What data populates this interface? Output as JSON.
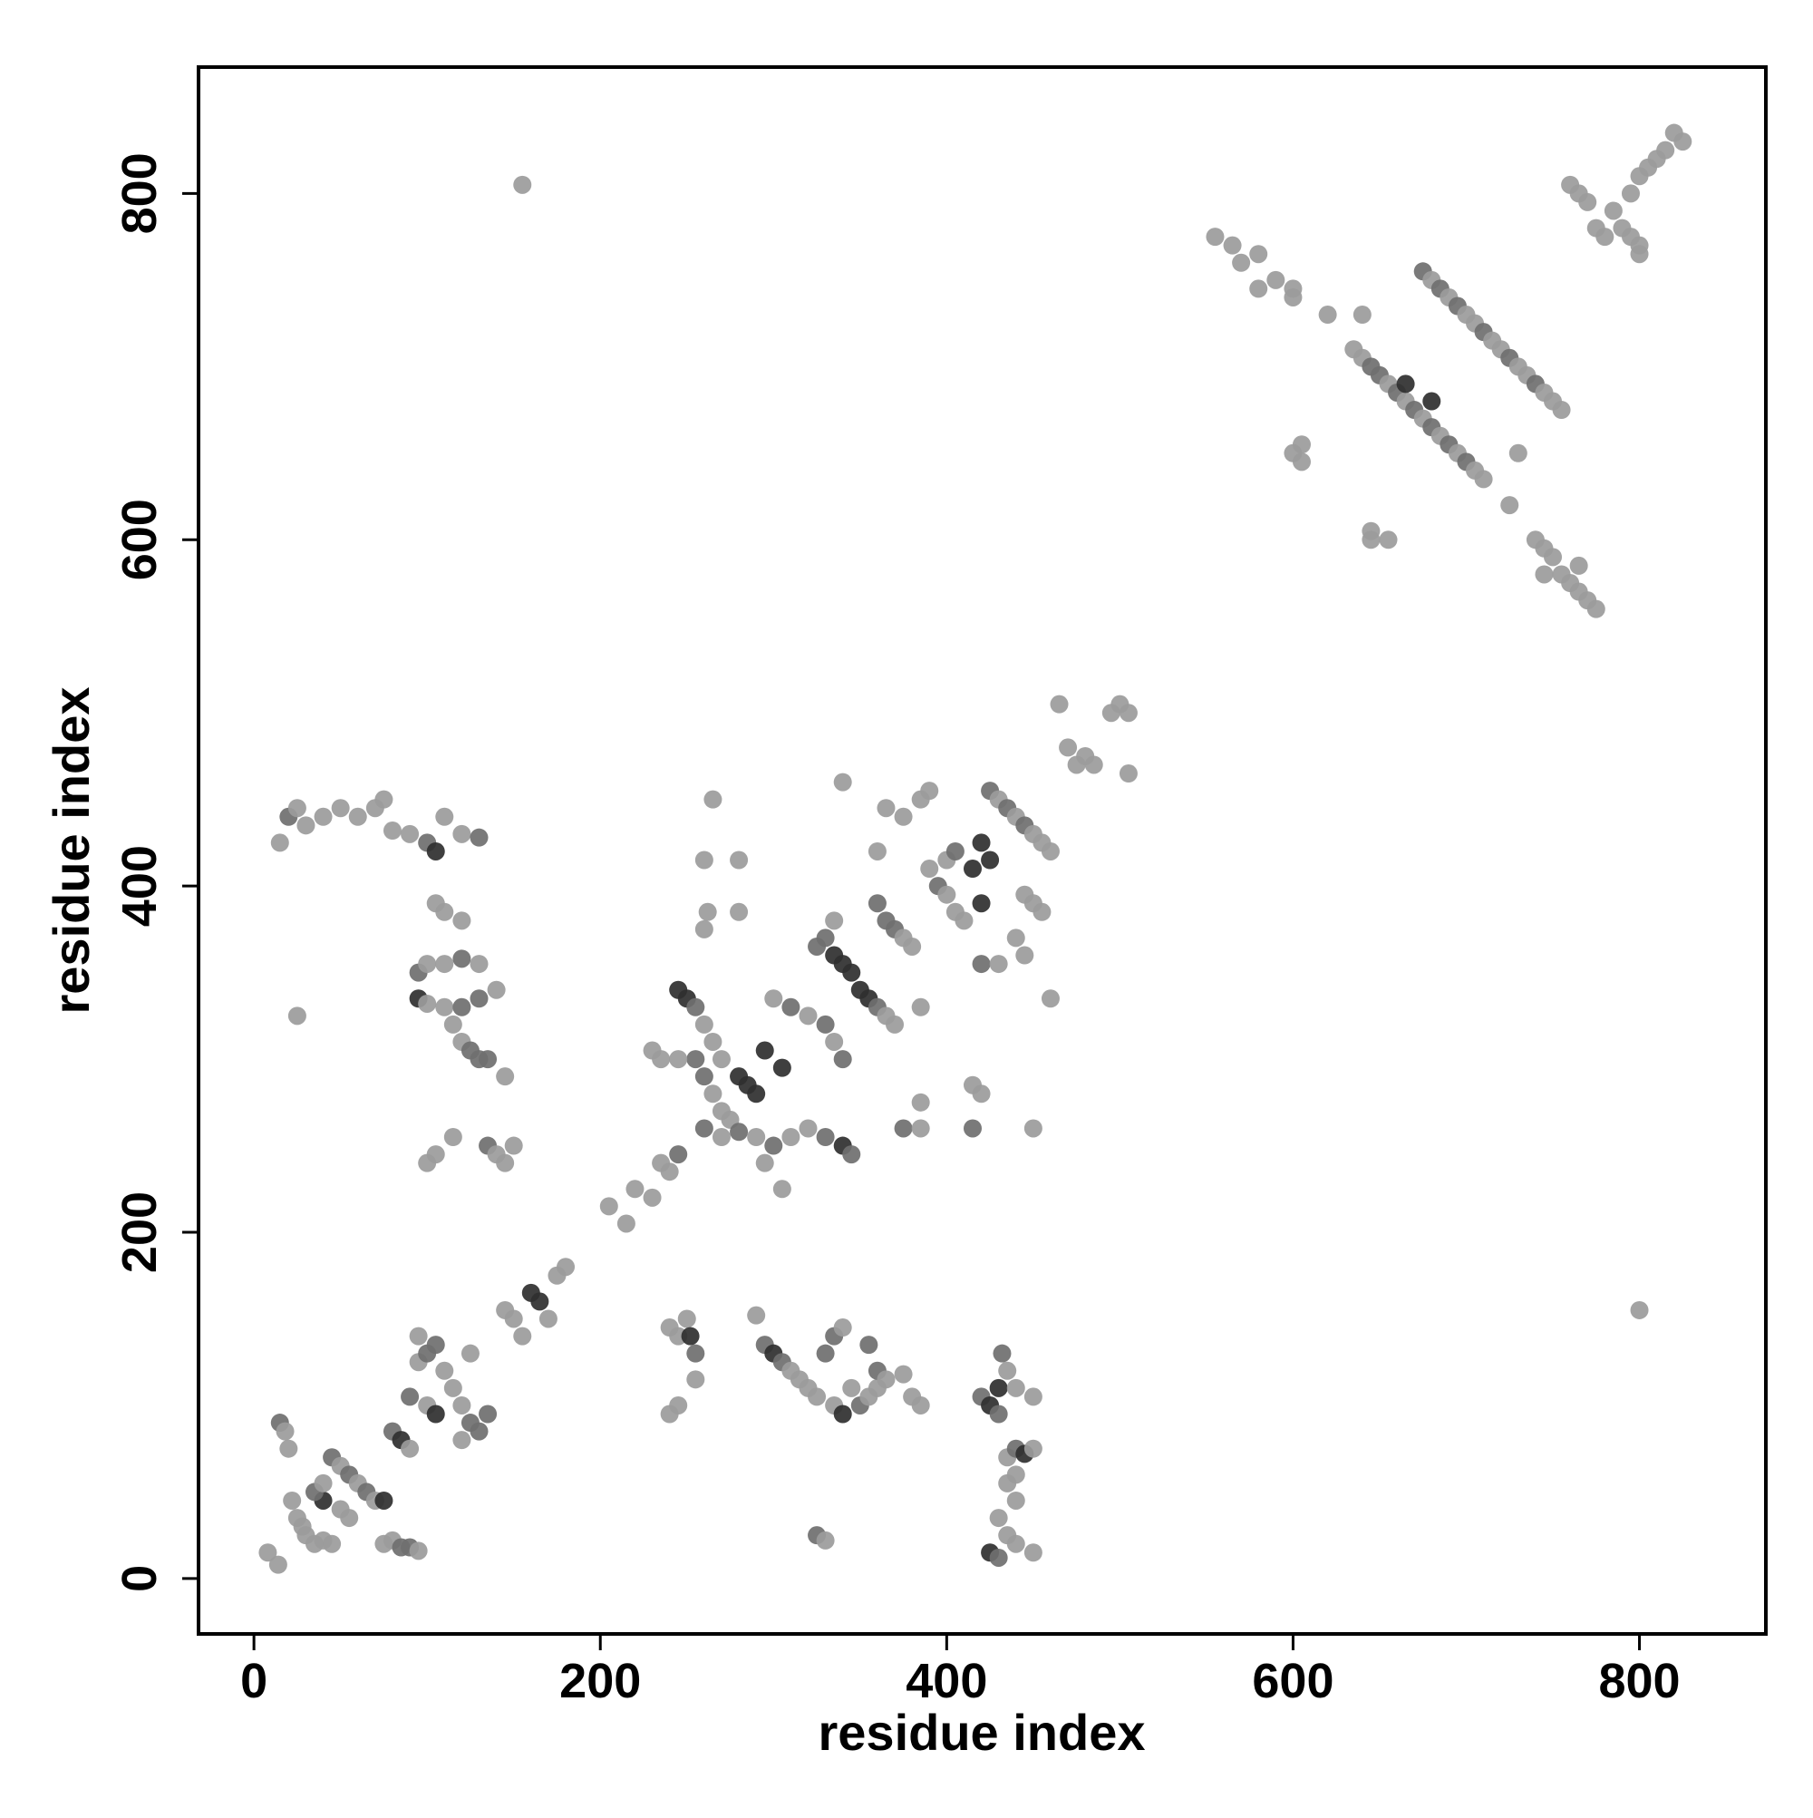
{
  "chart_data": {
    "type": "scatter",
    "x_label": "residue index",
    "y_label": "residue index",
    "xlim": [
      -32,
      873
    ],
    "ylim": [
      -32,
      873
    ],
    "xticks": [
      0,
      200,
      400,
      600,
      800
    ],
    "yticks": [
      0,
      200,
      400,
      600,
      800
    ],
    "x": [
      8,
      14,
      15,
      18,
      20,
      22,
      25,
      28,
      30,
      35,
      40,
      45,
      40,
      45,
      50,
      55,
      60,
      65,
      70,
      75,
      35,
      40,
      50,
      55,
      75,
      80,
      85,
      90,
      95,
      80,
      85,
      90,
      95,
      100,
      105,
      95,
      90,
      100,
      105,
      110,
      115,
      120,
      125,
      130,
      135,
      120,
      125,
      145,
      150,
      155,
      160,
      165,
      175,
      180,
      170,
      205,
      215,
      220,
      230,
      235,
      240,
      245,
      15,
      20,
      25,
      30,
      40,
      50,
      60,
      70,
      75,
      80,
      90,
      100,
      105,
      110,
      120,
      130,
      105,
      110,
      120,
      95,
      100,
      110,
      120,
      130,
      95,
      100,
      110,
      120,
      130,
      140,
      115,
      120,
      125,
      130,
      135,
      145,
      25,
      100,
      105,
      115,
      135,
      140,
      145,
      150,
      245,
      250,
      255,
      260,
      265,
      270,
      255,
      260,
      265,
      270,
      275,
      280,
      285,
      290,
      295,
      305,
      260,
      270,
      280,
      290,
      300,
      310,
      320,
      330,
      340,
      345,
      300,
      310,
      320,
      330,
      335,
      340,
      305,
      295,
      230,
      235,
      245,
      260,
      262,
      260,
      280,
      265,
      280,
      340,
      330,
      335,
      340,
      345,
      350,
      355,
      360,
      365,
      370,
      335,
      325,
      360,
      365,
      370,
      375,
      380,
      385,
      360,
      365,
      375,
      385,
      390,
      390,
      395,
      400,
      405,
      410,
      400,
      405,
      415,
      420,
      425,
      420,
      425,
      430,
      435,
      440,
      445,
      450,
      455,
      460,
      445,
      450,
      455,
      440,
      445,
      420,
      430,
      460,
      415,
      420,
      415,
      450,
      385,
      375,
      385,
      465,
      470,
      475,
      480,
      485,
      495,
      500,
      505,
      505,
      240,
      245,
      250,
      252,
      255,
      240,
      245,
      255,
      290,
      295,
      300,
      305,
      310,
      315,
      320,
      325,
      330,
      335,
      340,
      335,
      340,
      345,
      350,
      355,
      360,
      355,
      360,
      365,
      375,
      380,
      385,
      325,
      330,
      420,
      425,
      430,
      430,
      435,
      440,
      450,
      432,
      435,
      440,
      445,
      450,
      435,
      440,
      430,
      435,
      425,
      430,
      440,
      450,
      440,
      155,
      800,
      555,
      565,
      570,
      580,
      580,
      590,
      600,
      600,
      620,
      640,
      645,
      655,
      645,
      600,
      605,
      605,
      635,
      640,
      645,
      650,
      655,
      660,
      665,
      670,
      675,
      680,
      685,
      690,
      695,
      700,
      705,
      710,
      665,
      680,
      675,
      680,
      685,
      690,
      695,
      700,
      705,
      710,
      715,
      720,
      725,
      730,
      735,
      740,
      745,
      750,
      755,
      730,
      725,
      740,
      745,
      750,
      745,
      755,
      760,
      765,
      770,
      775,
      765,
      760,
      765,
      770,
      775,
      780,
      785,
      790,
      795,
      800,
      800,
      795,
      800,
      805,
      810,
      815,
      820,
      825
    ],
    "y": [
      15,
      8,
      90,
      85,
      75,
      45,
      35,
      30,
      25,
      20,
      22,
      20,
      45,
      70,
      65,
      60,
      55,
      50,
      45,
      45,
      50,
      55,
      40,
      35,
      20,
      22,
      18,
      18,
      16,
      85,
      80,
      75,
      125,
      130,
      135,
      140,
      105,
      100,
      95,
      120,
      110,
      100,
      90,
      85,
      95,
      80,
      130,
      155,
      150,
      140,
      165,
      160,
      175,
      180,
      150,
      215,
      205,
      225,
      220,
      240,
      235,
      245,
      425,
      440,
      445,
      435,
      440,
      445,
      440,
      445,
      450,
      432,
      430,
      425,
      420,
      440,
      430,
      428,
      390,
      385,
      380,
      350,
      355,
      355,
      358,
      355,
      335,
      332,
      330,
      330,
      335,
      340,
      320,
      310,
      305,
      300,
      300,
      290,
      325,
      240,
      245,
      255,
      250,
      245,
      240,
      250,
      340,
      335,
      330,
      320,
      310,
      300,
      300,
      290,
      280,
      270,
      265,
      290,
      285,
      280,
      305,
      295,
      260,
      255,
      258,
      255,
      250,
      255,
      260,
      255,
      250,
      245,
      335,
      330,
      325,
      320,
      310,
      300,
      225,
      240,
      305,
      300,
      300,
      375,
      385,
      415,
      415,
      450,
      385,
      460,
      370,
      360,
      355,
      350,
      340,
      335,
      330,
      325,
      320,
      380,
      365,
      390,
      380,
      375,
      370,
      365,
      330,
      420,
      445,
      440,
      450,
      455,
      410,
      400,
      395,
      385,
      380,
      415,
      420,
      410,
      425,
      415,
      390,
      455,
      450,
      445,
      440,
      435,
      430,
      425,
      420,
      395,
      390,
      385,
      370,
      360,
      355,
      355,
      335,
      285,
      280,
      260,
      260,
      275,
      260,
      260,
      505,
      480,
      470,
      475,
      470,
      500,
      505,
      500,
      465,
      145,
      140,
      150,
      140,
      130,
      95,
      100,
      115,
      152,
      135,
      130,
      125,
      120,
      115,
      110,
      105,
      130,
      140,
      145,
      100,
      95,
      110,
      100,
      105,
      110,
      135,
      120,
      115,
      118,
      105,
      100,
      25,
      22,
      105,
      100,
      95,
      110,
      120,
      110,
      105,
      130,
      70,
      75,
      72,
      75,
      55,
      45,
      35,
      25,
      15,
      12,
      20,
      15,
      60,
      805,
      155,
      775,
      770,
      760,
      765,
      745,
      750,
      745,
      740,
      730,
      730,
      600,
      600,
      605,
      650,
      645,
      655,
      710,
      705,
      700,
      695,
      690,
      685,
      680,
      675,
      670,
      665,
      660,
      655,
      650,
      645,
      640,
      635,
      690,
      680,
      755,
      750,
      745,
      740,
      735,
      730,
      725,
      720,
      715,
      710,
      705,
      700,
      695,
      690,
      685,
      680,
      675,
      650,
      620,
      600,
      595,
      590,
      580,
      580,
      575,
      570,
      565,
      560,
      585,
      805,
      800,
      795,
      780,
      775,
      790,
      780,
      775,
      770,
      765,
      800,
      810,
      815,
      820,
      825,
      835,
      830
    ],
    "colors": [
      "#9b9b9b",
      "#9b9b9b",
      "#6f6f6f",
      "#9b9b9b",
      "#9b9b9b",
      "#9b9b9b",
      "#9b9b9b",
      "#9b9b9b",
      "#9b9b9b",
      "#9b9b9b",
      "#9b9b9b",
      "#9b9b9b",
      "#2f2f2f",
      "#6f6f6f",
      "#9b9b9b",
      "#6f6f6f",
      "#9b9b9b",
      "#6f6f6f",
      "#9b9b9b",
      "#2f2f2f",
      "#6f6f6f",
      "#9b9b9b",
      "#9b9b9b",
      "#9b9b9b",
      "#9b9b9b",
      "#9b9b9b",
      "#6f6f6f",
      "#6f6f6f",
      "#9b9b9b",
      "#6f6f6f",
      "#2f2f2f",
      "#9b9b9b",
      "#9b9b9b",
      "#6f6f6f",
      "#6f6f6f",
      "#9b9b9b",
      "#6f6f6f",
      "#9b9b9b",
      "#2f2f2f",
      "#9b9b9b",
      "#9b9b9b",
      "#9b9b9b",
      "#6f6f6f",
      "#6f6f6f",
      "#6f6f6f",
      "#9b9b9b",
      "#9b9b9b",
      "#9b9b9b",
      "#9b9b9b",
      "#9b9b9b",
      "#2f2f2f",
      "#2f2f2f",
      "#9b9b9b",
      "#9b9b9b",
      "#9b9b9b",
      "#9b9b9b",
      "#9b9b9b",
      "#9b9b9b",
      "#9b9b9b",
      "#9b9b9b",
      "#9b9b9b",
      "#6f6f6f",
      "#9b9b9b",
      "#6f6f6f",
      "#9b9b9b",
      "#9b9b9b",
      "#9b9b9b",
      "#9b9b9b",
      "#9b9b9b",
      "#9b9b9b",
      "#9b9b9b",
      "#9b9b9b",
      "#9b9b9b",
      "#6f6f6f",
      "#2f2f2f",
      "#9b9b9b",
      "#9b9b9b",
      "#6f6f6f",
      "#9b9b9b",
      "#9b9b9b",
      "#9b9b9b",
      "#6f6f6f",
      "#9b9b9b",
      "#9b9b9b",
      "#6f6f6f",
      "#9b9b9b",
      "#2f2f2f",
      "#9b9b9b",
      "#9b9b9b",
      "#6f6f6f",
      "#6f6f6f",
      "#9b9b9b",
      "#9b9b9b",
      "#9b9b9b",
      "#6f6f6f",
      "#6f6f6f",
      "#6f6f6f",
      "#9b9b9b",
      "#9b9b9b",
      "#9b9b9b",
      "#9b9b9b",
      "#9b9b9b",
      "#6f6f6f",
      "#9b9b9b",
      "#9b9b9b",
      "#9b9b9b",
      "#2f2f2f",
      "#2f2f2f",
      "#6f6f6f",
      "#9b9b9b",
      "#9b9b9b",
      "#9b9b9b",
      "#6f6f6f",
      "#6f6f6f",
      "#9b9b9b",
      "#9b9b9b",
      "#9b9b9b",
      "#2f2f2f",
      "#2f2f2f",
      "#2f2f2f",
      "#2f2f2f",
      "#2f2f2f",
      "#6f6f6f",
      "#9b9b9b",
      "#6f6f6f",
      "#9b9b9b",
      "#6f6f6f",
      "#9b9b9b",
      "#9b9b9b",
      "#6f6f6f",
      "#2f2f2f",
      "#6f6f6f",
      "#9b9b9b",
      "#6f6f6f",
      "#9b9b9b",
      "#6f6f6f",
      "#9b9b9b",
      "#6f6f6f",
      "#9b9b9b",
      "#9b9b9b",
      "#9b9b9b",
      "#9b9b9b",
      "#9b9b9b",
      "#9b9b9b",
      "#9b9b9b",
      "#9b9b9b",
      "#9b9b9b",
      "#9b9b9b",
      "#9b9b9b",
      "#9b9b9b",
      "#6f6f6f",
      "#2f2f2f",
      "#2f2f2f",
      "#2f2f2f",
      "#2f2f2f",
      "#2f2f2f",
      "#6f6f6f",
      "#9b9b9b",
      "#9b9b9b",
      "#9b9b9b",
      "#6f6f6f",
      "#6f6f6f",
      "#6f6f6f",
      "#6f6f6f",
      "#9b9b9b",
      "#9b9b9b",
      "#9b9b9b",
      "#9b9b9b",
      "#9b9b9b",
      "#9b9b9b",
      "#9b9b9b",
      "#9b9b9b",
      "#9b9b9b",
      "#6f6f6f",
      "#9b9b9b",
      "#9b9b9b",
      "#9b9b9b",
      "#9b9b9b",
      "#6f6f6f",
      "#2f2f2f",
      "#2f2f2f",
      "#2f2f2f",
      "#2f2f2f",
      "#6f6f6f",
      "#9b9b9b",
      "#6f6f6f",
      "#9b9b9b",
      "#6f6f6f",
      "#9b9b9b",
      "#9b9b9b",
      "#9b9b9b",
      "#9b9b9b",
      "#9b9b9b",
      "#9b9b9b",
      "#9b9b9b",
      "#9b9b9b",
      "#6f6f6f",
      "#9b9b9b",
      "#9b9b9b",
      "#9b9b9b",
      "#9b9b9b",
      "#6f6f6f",
      "#9b9b9b",
      "#9b9b9b",
      "#6f6f6f",
      "#9b9b9b",
      "#9b9b9b",
      "#9b9b9b",
      "#9b9b9b",
      "#9b9b9b",
      "#9b9b9b",
      "#9b9b9b",
      "#9b9b9b",
      "#9b9b9b",
      "#9b9b9b",
      "#9b9b9b",
      "#9b9b9b",
      "#9b9b9b",
      "#2f2f2f",
      "#6f6f6f",
      "#9b9b9b",
      "#9b9b9b",
      "#9b9b9b",
      "#9b9b9b",
      "#6f6f6f",
      "#2f2f2f",
      "#6f6f6f",
      "#9b9b9b",
      "#9b9b9b",
      "#9b9b9b",
      "#9b9b9b",
      "#6f6f6f",
      "#6f6f6f",
      "#9b9b9b",
      "#9b9b9b",
      "#2f2f2f",
      "#9b9b9b",
      "#6f6f6f",
      "#9b9b9b",
      "#9b9b9b",
      "#6f6f6f",
      "#6f6f6f",
      "#9b9b9b",
      "#9b9b9b",
      "#9b9b9b",
      "#9b9b9b",
      "#6f6f6f",
      "#9b9b9b",
      "#6f6f6f",
      "#2f2f2f",
      "#6f6f6f",
      "#2f2f2f",
      "#9b9b9b",
      "#9b9b9b",
      "#9b9b9b",
      "#6f6f6f",
      "#9b9b9b",
      "#6f6f6f",
      "#2f2f2f",
      "#9b9b9b",
      "#9b9b9b",
      "#9b9b9b",
      "#9b9b9b",
      "#9b9b9b",
      "#2f2f2f",
      "#6f6f6f",
      "#9b9b9b",
      "#9b9b9b",
      "#9b9b9b",
      "#9b9b9b",
      "#9b9b9b",
      "#9b9b9b",
      "#9b9b9b",
      "#9b9b9b",
      "#9b9b9b",
      "#9b9b9b",
      "#9b9b9b",
      "#9b9b9b",
      "#9b9b9b",
      "#9b9b9b",
      "#9b9b9b",
      "#9b9b9b",
      "#9b9b9b",
      "#9b9b9b",
      "#9b9b9b",
      "#9b9b9b",
      "#9b9b9b",
      "#9b9b9b",
      "#9b9b9b",
      "#6f6f6f",
      "#6f6f6f",
      "#9b9b9b",
      "#6f6f6f",
      "#9b9b9b",
      "#6f6f6f",
      "#9b9b9b",
      "#6f6f6f",
      "#9b9b9b",
      "#6f6f6f",
      "#9b9b9b",
      "#6f6f6f",
      "#9b9b9b",
      "#9b9b9b",
      "#2f2f2f",
      "#2f2f2f",
      "#6f6f6f",
      "#9b9b9b",
      "#6f6f6f",
      "#9b9b9b",
      "#6f6f6f",
      "#9b9b9b",
      "#9b9b9b",
      "#6f6f6f",
      "#9b9b9b",
      "#9b9b9b",
      "#6f6f6f",
      "#9b9b9b",
      "#9b9b9b",
      "#6f6f6f",
      "#9b9b9b",
      "#9b9b9b",
      "#9b9b9b",
      "#9b9b9b",
      "#9b9b9b",
      "#9b9b9b",
      "#9b9b9b",
      "#9b9b9b",
      "#9b9b9b",
      "#9b9b9b",
      "#9b9b9b",
      "#9b9b9b",
      "#9b9b9b",
      "#9b9b9b",
      "#9b9b9b",
      "#9b9b9b",
      "#9b9b9b",
      "#9b9b9b",
      "#9b9b9b",
      "#9b9b9b",
      "#9b9b9b",
      "#9b9b9b",
      "#9b9b9b",
      "#9b9b9b",
      "#9b9b9b",
      "#9b9b9b",
      "#9b9b9b",
      "#9b9b9b",
      "#9b9b9b",
      "#9b9b9b",
      "#9b9b9b",
      "#9b9b9b"
    ]
  }
}
